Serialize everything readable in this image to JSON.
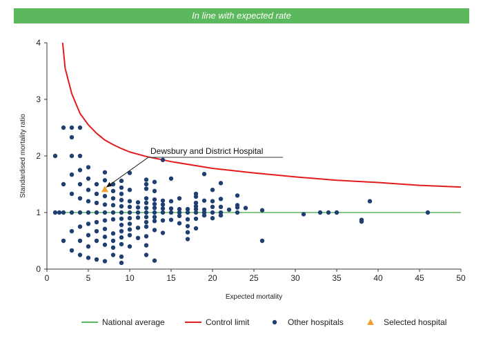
{
  "banner": "In line with expected rate",
  "chart_data": {
    "type": "scatter",
    "xlabel": "Expected mortality",
    "ylabel": "Standardised mortality ratio",
    "xlim": [
      0,
      50
    ],
    "ylim": [
      0,
      4
    ],
    "x_ticks": [
      0,
      5,
      10,
      15,
      20,
      25,
      30,
      35,
      40,
      45,
      50
    ],
    "y_ticks": [
      0,
      1,
      2,
      3,
      4
    ],
    "grid": false,
    "legend_position": "bottom",
    "national_average": 1,
    "annotation": {
      "text": "Dewsbury and District Hospital",
      "target": [
        7,
        1.41
      ]
    },
    "series": [
      {
        "name": "National average",
        "kind": "line",
        "color": "#5cb85c",
        "points": [
          [
            1,
            1
          ],
          [
            50,
            1
          ]
        ]
      },
      {
        "name": "Control limit",
        "kind": "line",
        "color": "#e31a1c",
        "points": [
          [
            1.9,
            4.0
          ],
          [
            2.2,
            3.55
          ],
          [
            3,
            3.1
          ],
          [
            4,
            2.75
          ],
          [
            5,
            2.55
          ],
          [
            6,
            2.4
          ],
          [
            7,
            2.28
          ],
          [
            8,
            2.2
          ],
          [
            9,
            2.13
          ],
          [
            10,
            2.07
          ],
          [
            12,
            1.99
          ],
          [
            15,
            1.9
          ],
          [
            20,
            1.78
          ],
          [
            25,
            1.7
          ],
          [
            30,
            1.63
          ],
          [
            35,
            1.57
          ],
          [
            40,
            1.53
          ],
          [
            45,
            1.48
          ],
          [
            50,
            1.45
          ]
        ]
      },
      {
        "name": "Other hospitals",
        "kind": "scatter",
        "color": "#1f3f73",
        "points": [
          [
            1,
            2.0
          ],
          [
            1,
            1.0
          ],
          [
            1.5,
            1.0
          ],
          [
            2,
            2.5
          ],
          [
            2,
            1.5
          ],
          [
            2,
            1.0
          ],
          [
            2,
            0.5
          ],
          [
            3,
            2.5
          ],
          [
            3,
            2.33
          ],
          [
            3,
            2.0
          ],
          [
            3,
            1.67
          ],
          [
            3,
            1.33
          ],
          [
            3,
            1.0
          ],
          [
            3,
            0.67
          ],
          [
            3,
            0.33
          ],
          [
            4,
            2.5
          ],
          [
            4,
            2.0
          ],
          [
            4,
            1.75
          ],
          [
            4,
            1.5
          ],
          [
            4,
            1.25
          ],
          [
            4,
            1.0
          ],
          [
            4,
            0.75
          ],
          [
            4,
            0.5
          ],
          [
            4,
            0.25
          ],
          [
            5,
            1.8
          ],
          [
            5,
            1.6
          ],
          [
            5,
            1.4
          ],
          [
            5,
            1.2
          ],
          [
            5,
            1.0
          ],
          [
            5,
            0.8
          ],
          [
            5,
            0.6
          ],
          [
            5,
            0.4
          ],
          [
            5,
            0.2
          ],
          [
            6,
            1.5
          ],
          [
            6,
            1.33
          ],
          [
            6,
            1.17
          ],
          [
            6,
            1.0
          ],
          [
            6,
            0.83
          ],
          [
            6,
            0.67
          ],
          [
            6,
            0.5
          ],
          [
            6,
            0.17
          ],
          [
            7,
            1.71
          ],
          [
            7,
            1.57
          ],
          [
            7,
            1.29
          ],
          [
            7,
            1.14
          ],
          [
            7,
            1.0
          ],
          [
            7,
            0.86
          ],
          [
            7,
            0.71
          ],
          [
            7,
            0.57
          ],
          [
            7,
            0.43
          ],
          [
            7,
            0.14
          ],
          [
            8,
            1.5
          ],
          [
            8,
            1.38
          ],
          [
            8,
            1.25
          ],
          [
            8,
            1.13
          ],
          [
            8,
            1.0
          ],
          [
            8,
            0.88
          ],
          [
            8,
            0.63
          ],
          [
            8,
            0.5
          ],
          [
            8,
            0.38
          ],
          [
            8,
            0.25
          ],
          [
            9,
            1.56
          ],
          [
            9,
            1.44
          ],
          [
            9,
            1.33
          ],
          [
            9,
            1.22
          ],
          [
            9,
            1.11
          ],
          [
            9,
            1.0
          ],
          [
            9,
            0.89
          ],
          [
            9,
            0.78
          ],
          [
            9,
            0.67
          ],
          [
            9,
            0.56
          ],
          [
            9,
            0.44
          ],
          [
            9,
            0.22
          ],
          [
            9,
            0.11
          ],
          [
            10,
            1.7
          ],
          [
            10,
            1.4
          ],
          [
            10,
            1.2
          ],
          [
            10,
            1.1
          ],
          [
            10,
            1.0
          ],
          [
            10,
            0.9
          ],
          [
            10,
            0.8
          ],
          [
            10,
            0.7
          ],
          [
            10,
            0.6
          ],
          [
            10,
            0.4
          ],
          [
            11,
            1.18
          ],
          [
            11,
            1.09
          ],
          [
            11,
            1.0
          ],
          [
            11,
            0.91
          ],
          [
            11,
            0.73
          ],
          [
            11,
            0.55
          ],
          [
            12,
            1.58
          ],
          [
            12,
            1.5
          ],
          [
            12,
            1.42
          ],
          [
            12,
            1.25
          ],
          [
            12,
            1.17
          ],
          [
            12,
            1.08
          ],
          [
            12,
            1.0
          ],
          [
            12,
            0.92
          ],
          [
            12,
            0.83
          ],
          [
            12,
            0.75
          ],
          [
            12,
            0.58
          ],
          [
            12,
            0.42
          ],
          [
            12,
            0.25
          ],
          [
            13,
            1.54
          ],
          [
            13,
            1.38
          ],
          [
            13,
            1.23
          ],
          [
            13,
            1.15
          ],
          [
            13,
            1.08
          ],
          [
            13,
            1.0
          ],
          [
            13,
            0.92
          ],
          [
            13,
            0.85
          ],
          [
            13,
            0.69
          ],
          [
            13,
            0.15
          ],
          [
            14,
            1.93
          ],
          [
            14,
            1.21
          ],
          [
            14,
            1.14
          ],
          [
            14,
            1.07
          ],
          [
            14,
            1.0
          ],
          [
            14,
            0.86
          ],
          [
            14,
            0.64
          ],
          [
            15,
            1.6
          ],
          [
            15,
            1.2
          ],
          [
            15,
            1.07
          ],
          [
            15,
            1.0
          ],
          [
            15,
            0.87
          ],
          [
            16,
            1.25
          ],
          [
            16,
            1.06
          ],
          [
            16,
            1.0
          ],
          [
            16,
            0.94
          ],
          [
            16,
            0.81
          ],
          [
            17,
            1.06
          ],
          [
            17,
            1.0
          ],
          [
            17,
            0.88
          ],
          [
            17,
            0.76
          ],
          [
            17,
            0.53
          ],
          [
            17,
            0.65
          ],
          [
            18,
            1.33
          ],
          [
            18,
            1.28
          ],
          [
            18,
            1.17
          ],
          [
            18,
            1.11
          ],
          [
            18,
            1.06
          ],
          [
            18,
            1.0
          ],
          [
            18,
            0.89
          ],
          [
            18,
            0.72
          ],
          [
            19,
            1.68
          ],
          [
            19,
            1.21
          ],
          [
            19,
            1.05
          ],
          [
            19,
            1.0
          ],
          [
            19,
            0.95
          ],
          [
            20,
            1.4
          ],
          [
            20,
            1.2
          ],
          [
            20,
            1.1
          ],
          [
            20,
            1.0
          ],
          [
            20,
            0.9
          ],
          [
            21,
            1.52
          ],
          [
            21,
            1.24
          ],
          [
            21,
            1.1
          ],
          [
            21,
            1.0
          ],
          [
            21,
            0.95
          ],
          [
            22,
            1.05
          ],
          [
            23,
            1.3
          ],
          [
            23,
            1.13
          ],
          [
            23,
            1.09
          ],
          [
            23,
            1.0
          ],
          [
            24,
            1.08
          ],
          [
            26,
            1.04
          ],
          [
            26,
            0.5
          ],
          [
            31,
            0.97
          ],
          [
            33,
            1.0
          ],
          [
            34,
            1.0
          ],
          [
            35,
            1.0
          ],
          [
            38,
            0.87
          ],
          [
            38,
            0.84
          ],
          [
            39,
            1.2
          ],
          [
            46,
            1.0
          ]
        ]
      },
      {
        "name": "Selected hospital",
        "kind": "scatter",
        "color": "#f0a030",
        "points": [
          [
            7,
            1.41
          ]
        ]
      }
    ]
  }
}
